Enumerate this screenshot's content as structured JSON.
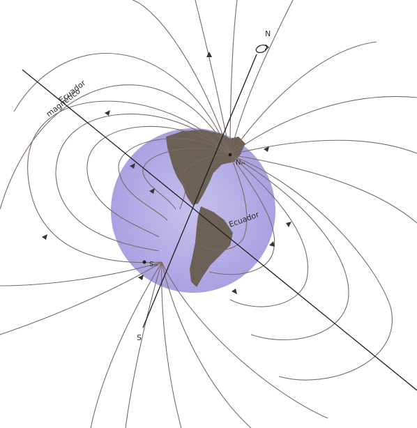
{
  "labels": {
    "north": "N",
    "south": "S",
    "geo_equator": "Ecuador",
    "magnetic_equator_line1": "Ecuador",
    "magnetic_equator_line2": "magnético",
    "magnetic_north": "Nₘ",
    "magnetic_south": "Sₘ"
  },
  "colors": {
    "globe": "#a89ee6",
    "continent": "#6b6157",
    "field_lines": "#7a6a62",
    "axis": "#1e1e1e"
  },
  "icons": {
    "rotation": "rotation-arrow-icon"
  }
}
